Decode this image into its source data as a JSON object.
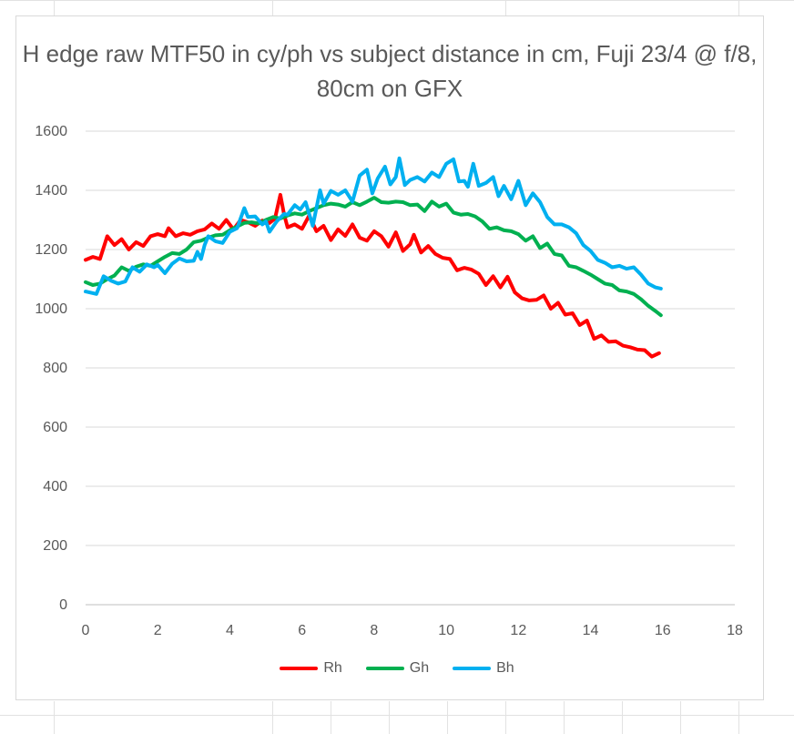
{
  "chart_data": {
    "type": "line",
    "title": "H edge raw MTF50 in cy/ph vs subject distance in cm, Fuji 23/4 @ f/8, 80cm on GFX",
    "xlim": [
      0,
      18
    ],
    "ylim": [
      0,
      1600
    ],
    "x_ticks": [
      "0",
      "2",
      "4",
      "6",
      "8",
      "10",
      "12",
      "14",
      "16",
      "18"
    ],
    "y_ticks": [
      "0",
      "200",
      "400",
      "600",
      "800",
      "1000",
      "1200",
      "1400",
      "1600"
    ],
    "grid": "horizontal",
    "legend": "bottom",
    "series": [
      {
        "name": "Rh",
        "color": "#ff0000",
        "points": [
          [
            0.0,
            1165
          ],
          [
            0.2,
            1175
          ],
          [
            0.4,
            1168
          ],
          [
            0.6,
            1245
          ],
          [
            0.8,
            1215
          ],
          [
            1.0,
            1235
          ],
          [
            1.2,
            1200
          ],
          [
            1.4,
            1225
          ],
          [
            1.6,
            1212
          ],
          [
            1.8,
            1245
          ],
          [
            2.0,
            1252
          ],
          [
            2.2,
            1245
          ],
          [
            2.3,
            1272
          ],
          [
            2.5,
            1245
          ],
          [
            2.7,
            1255
          ],
          [
            2.9,
            1250
          ],
          [
            3.1,
            1262
          ],
          [
            3.3,
            1268
          ],
          [
            3.5,
            1288
          ],
          [
            3.7,
            1270
          ],
          [
            3.9,
            1300
          ],
          [
            4.1,
            1268
          ],
          [
            4.3,
            1300
          ],
          [
            4.5,
            1292
          ],
          [
            4.7,
            1280
          ],
          [
            4.9,
            1298
          ],
          [
            5.1,
            1290
          ],
          [
            5.25,
            1305
          ],
          [
            5.4,
            1385
          ],
          [
            5.5,
            1320
          ],
          [
            5.6,
            1275
          ],
          [
            5.8,
            1285
          ],
          [
            6.0,
            1270
          ],
          [
            6.2,
            1315
          ],
          [
            6.4,
            1262
          ],
          [
            6.6,
            1280
          ],
          [
            6.8,
            1232
          ],
          [
            7.0,
            1268
          ],
          [
            7.2,
            1246
          ],
          [
            7.4,
            1285
          ],
          [
            7.6,
            1240
          ],
          [
            7.8,
            1230
          ],
          [
            8.0,
            1262
          ],
          [
            8.2,
            1245
          ],
          [
            8.4,
            1210
          ],
          [
            8.6,
            1258
          ],
          [
            8.8,
            1195
          ],
          [
            9.0,
            1218
          ],
          [
            9.1,
            1250
          ],
          [
            9.3,
            1190
          ],
          [
            9.5,
            1212
          ],
          [
            9.7,
            1185
          ],
          [
            9.9,
            1172
          ],
          [
            10.1,
            1168
          ],
          [
            10.3,
            1130
          ],
          [
            10.5,
            1138
          ],
          [
            10.7,
            1132
          ],
          [
            10.9,
            1118
          ],
          [
            11.1,
            1080
          ],
          [
            11.3,
            1110
          ],
          [
            11.5,
            1072
          ],
          [
            11.7,
            1108
          ],
          [
            11.9,
            1055
          ],
          [
            12.1,
            1035
          ],
          [
            12.3,
            1028
          ],
          [
            12.5,
            1030
          ],
          [
            12.7,
            1045
          ],
          [
            12.9,
            1000
          ],
          [
            13.1,
            1020
          ],
          [
            13.3,
            980
          ],
          [
            13.5,
            985
          ],
          [
            13.7,
            945
          ],
          [
            13.9,
            960
          ],
          [
            14.1,
            898
          ],
          [
            14.3,
            910
          ],
          [
            14.5,
            888
          ],
          [
            14.7,
            890
          ],
          [
            14.9,
            875
          ],
          [
            15.1,
            870
          ],
          [
            15.3,
            862
          ],
          [
            15.5,
            860
          ],
          [
            15.7,
            838
          ],
          [
            15.9,
            850
          ]
        ]
      },
      {
        "name": "Gh",
        "color": "#00b050",
        "points": [
          [
            0.0,
            1090
          ],
          [
            0.2,
            1080
          ],
          [
            0.4,
            1085
          ],
          [
            0.6,
            1100
          ],
          [
            0.8,
            1112
          ],
          [
            1.0,
            1140
          ],
          [
            1.2,
            1128
          ],
          [
            1.4,
            1142
          ],
          [
            1.6,
            1150
          ],
          [
            1.8,
            1145
          ],
          [
            2.0,
            1160
          ],
          [
            2.2,
            1175
          ],
          [
            2.4,
            1188
          ],
          [
            2.6,
            1185
          ],
          [
            2.8,
            1200
          ],
          [
            3.0,
            1225
          ],
          [
            3.2,
            1230
          ],
          [
            3.4,
            1240
          ],
          [
            3.6,
            1248
          ],
          [
            3.8,
            1250
          ],
          [
            4.0,
            1265
          ],
          [
            4.2,
            1278
          ],
          [
            4.4,
            1290
          ],
          [
            4.6,
            1292
          ],
          [
            4.8,
            1288
          ],
          [
            5.0,
            1300
          ],
          [
            5.2,
            1310
          ],
          [
            5.4,
            1305
          ],
          [
            5.6,
            1315
          ],
          [
            5.8,
            1322
          ],
          [
            6.0,
            1318
          ],
          [
            6.2,
            1330
          ],
          [
            6.4,
            1340
          ],
          [
            6.6,
            1350
          ],
          [
            6.8,
            1355
          ],
          [
            7.0,
            1352
          ],
          [
            7.2,
            1345
          ],
          [
            7.4,
            1360
          ],
          [
            7.6,
            1350
          ],
          [
            7.8,
            1362
          ],
          [
            8.0,
            1375
          ],
          [
            8.2,
            1360
          ],
          [
            8.4,
            1358
          ],
          [
            8.6,
            1362
          ],
          [
            8.8,
            1360
          ],
          [
            9.0,
            1350
          ],
          [
            9.2,
            1352
          ],
          [
            9.4,
            1330
          ],
          [
            9.6,
            1362
          ],
          [
            9.8,
            1345
          ],
          [
            10.0,
            1355
          ],
          [
            10.2,
            1325
          ],
          [
            10.4,
            1318
          ],
          [
            10.6,
            1320
          ],
          [
            10.8,
            1312
          ],
          [
            11.0,
            1295
          ],
          [
            11.2,
            1270
          ],
          [
            11.4,
            1275
          ],
          [
            11.6,
            1265
          ],
          [
            11.8,
            1262
          ],
          [
            12.0,
            1252
          ],
          [
            12.2,
            1230
          ],
          [
            12.4,
            1245
          ],
          [
            12.6,
            1205
          ],
          [
            12.8,
            1220
          ],
          [
            13.0,
            1185
          ],
          [
            13.2,
            1180
          ],
          [
            13.4,
            1145
          ],
          [
            13.6,
            1140
          ],
          [
            13.8,
            1128
          ],
          [
            14.0,
            1115
          ],
          [
            14.2,
            1100
          ],
          [
            14.4,
            1085
          ],
          [
            14.6,
            1080
          ],
          [
            14.8,
            1062
          ],
          [
            15.0,
            1058
          ],
          [
            15.2,
            1050
          ],
          [
            15.4,
            1032
          ],
          [
            15.6,
            1010
          ],
          [
            15.8,
            992
          ],
          [
            15.95,
            978
          ]
        ]
      },
      {
        "name": "Bh",
        "color": "#00b0f0",
        "points": [
          [
            0.0,
            1058
          ],
          [
            0.3,
            1050
          ],
          [
            0.5,
            1110
          ],
          [
            0.7,
            1095
          ],
          [
            0.9,
            1085
          ],
          [
            1.1,
            1092
          ],
          [
            1.3,
            1140
          ],
          [
            1.5,
            1125
          ],
          [
            1.7,
            1150
          ],
          [
            1.9,
            1140
          ],
          [
            2.0,
            1148
          ],
          [
            2.2,
            1120
          ],
          [
            2.4,
            1152
          ],
          [
            2.6,
            1170
          ],
          [
            2.8,
            1160
          ],
          [
            3.0,
            1162
          ],
          [
            3.1,
            1192
          ],
          [
            3.2,
            1168
          ],
          [
            3.3,
            1215
          ],
          [
            3.4,
            1245
          ],
          [
            3.6,
            1228
          ],
          [
            3.8,
            1222
          ],
          [
            4.0,
            1260
          ],
          [
            4.2,
            1272
          ],
          [
            4.4,
            1340
          ],
          [
            4.5,
            1310
          ],
          [
            4.7,
            1312
          ],
          [
            4.9,
            1285
          ],
          [
            5.0,
            1295
          ],
          [
            5.1,
            1260
          ],
          [
            5.3,
            1295
          ],
          [
            5.5,
            1320
          ],
          [
            5.6,
            1318
          ],
          [
            5.8,
            1350
          ],
          [
            5.95,
            1335
          ],
          [
            6.1,
            1360
          ],
          [
            6.3,
            1280
          ],
          [
            6.5,
            1400
          ],
          [
            6.6,
            1355
          ],
          [
            6.8,
            1398
          ],
          [
            7.0,
            1385
          ],
          [
            7.2,
            1400
          ],
          [
            7.4,
            1362
          ],
          [
            7.6,
            1450
          ],
          [
            7.8,
            1470
          ],
          [
            7.95,
            1390
          ],
          [
            8.1,
            1440
          ],
          [
            8.3,
            1480
          ],
          [
            8.45,
            1420
          ],
          [
            8.6,
            1445
          ],
          [
            8.7,
            1508
          ],
          [
            8.85,
            1418
          ],
          [
            9.0,
            1435
          ],
          [
            9.2,
            1445
          ],
          [
            9.4,
            1430
          ],
          [
            9.6,
            1460
          ],
          [
            9.8,
            1445
          ],
          [
            10.0,
            1490
          ],
          [
            10.2,
            1505
          ],
          [
            10.35,
            1430
          ],
          [
            10.5,
            1432
          ],
          [
            10.6,
            1412
          ],
          [
            10.75,
            1490
          ],
          [
            10.9,
            1415
          ],
          [
            11.1,
            1425
          ],
          [
            11.3,
            1445
          ],
          [
            11.45,
            1380
          ],
          [
            11.6,
            1415
          ],
          [
            11.8,
            1370
          ],
          [
            12.0,
            1432
          ],
          [
            12.2,
            1350
          ],
          [
            12.4,
            1390
          ],
          [
            12.6,
            1360
          ],
          [
            12.8,
            1310
          ],
          [
            13.0,
            1285
          ],
          [
            13.2,
            1285
          ],
          [
            13.4,
            1275
          ],
          [
            13.6,
            1255
          ],
          [
            13.8,
            1215
          ],
          [
            14.0,
            1195
          ],
          [
            14.2,
            1165
          ],
          [
            14.4,
            1155
          ],
          [
            14.6,
            1140
          ],
          [
            14.8,
            1145
          ],
          [
            15.0,
            1135
          ],
          [
            15.2,
            1140
          ],
          [
            15.4,
            1115
          ],
          [
            15.6,
            1085
          ],
          [
            15.8,
            1072
          ],
          [
            15.95,
            1068
          ]
        ]
      }
    ]
  }
}
